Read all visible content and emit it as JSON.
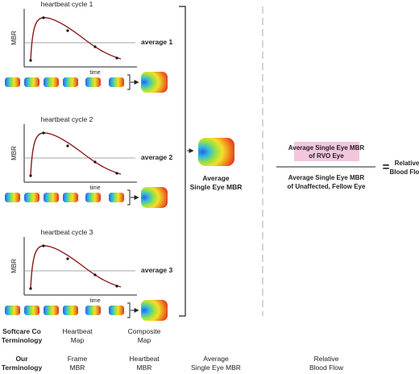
{
  "cycles": [
    {
      "title": "heartbeat cycle 1",
      "average_label": "average 1"
    },
    {
      "title": "heartbeat cycle 2",
      "average_label": "average 2"
    },
    {
      "title": "heartbeat cycle 3",
      "average_label": "average 3"
    }
  ],
  "axis": {
    "y_label": "MBR",
    "x_label": "time"
  },
  "average_map_label": [
    "Average",
    "Single Eye MBR"
  ],
  "ratio": {
    "numerator": [
      "Average Single Eye MBR",
      "of RVO Eye"
    ],
    "denominator": [
      "Average Single Eye MBR",
      "of Unaffected, Fellow Eye"
    ],
    "equals": "=",
    "result": [
      "Relative",
      "Blood Flow"
    ]
  },
  "terminology": {
    "softcare_header": [
      "Softcare Co",
      "Terminology"
    ],
    "ours_header": [
      "Our",
      "Terminology"
    ],
    "softcare": [
      [
        "Heartbeat",
        "Map"
      ],
      [
        "Composite",
        "Map"
      ]
    ],
    "ours": [
      [
        "Frame",
        "MBR"
      ],
      [
        "Heartbeat",
        "MBR"
      ],
      [
        "Average",
        "Single Eye MBR"
      ],
      [
        "Relative",
        "Blood Flow"
      ]
    ]
  },
  "colors": {
    "curve": "#8b1a1a",
    "average_line": "#888888",
    "highlight_box": "#f2c6df",
    "divider": "#bbbbbb"
  }
}
